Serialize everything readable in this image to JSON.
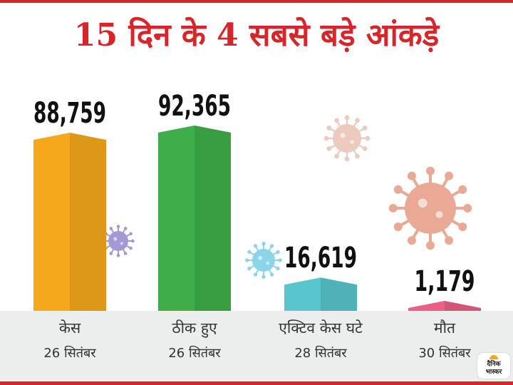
{
  "colors": {
    "accent": "#d6262a",
    "strip": "#eceded"
  },
  "chart_data": {
    "type": "bar",
    "title": "15 दिन के 4 सबसे बड़े आंकड़े",
    "categories": [
      "केस",
      "ठीक हुए",
      "एक्टिव केस घटे",
      "मौत"
    ],
    "dates": [
      "26 सितंबर",
      "26 सितंबर",
      "28 सितंबर",
      "30 सितंबर"
    ],
    "values": [
      88759,
      92365,
      16619,
      1179
    ],
    "value_labels": [
      "88,759",
      "92,365",
      "16,619",
      "1,179"
    ],
    "colors": [
      "#f5a81c",
      "#3fae49",
      "#59c6cd",
      "#e95f86"
    ],
    "ylim": [
      0,
      100000
    ],
    "grid": false
  },
  "decorations": [
    "virus-icon-purple",
    "virus-icon-blue",
    "virus-icon-beige",
    "virus-icon-salmon"
  ],
  "logo": {
    "line1": "दैनिक",
    "line2": "भास्कर"
  }
}
